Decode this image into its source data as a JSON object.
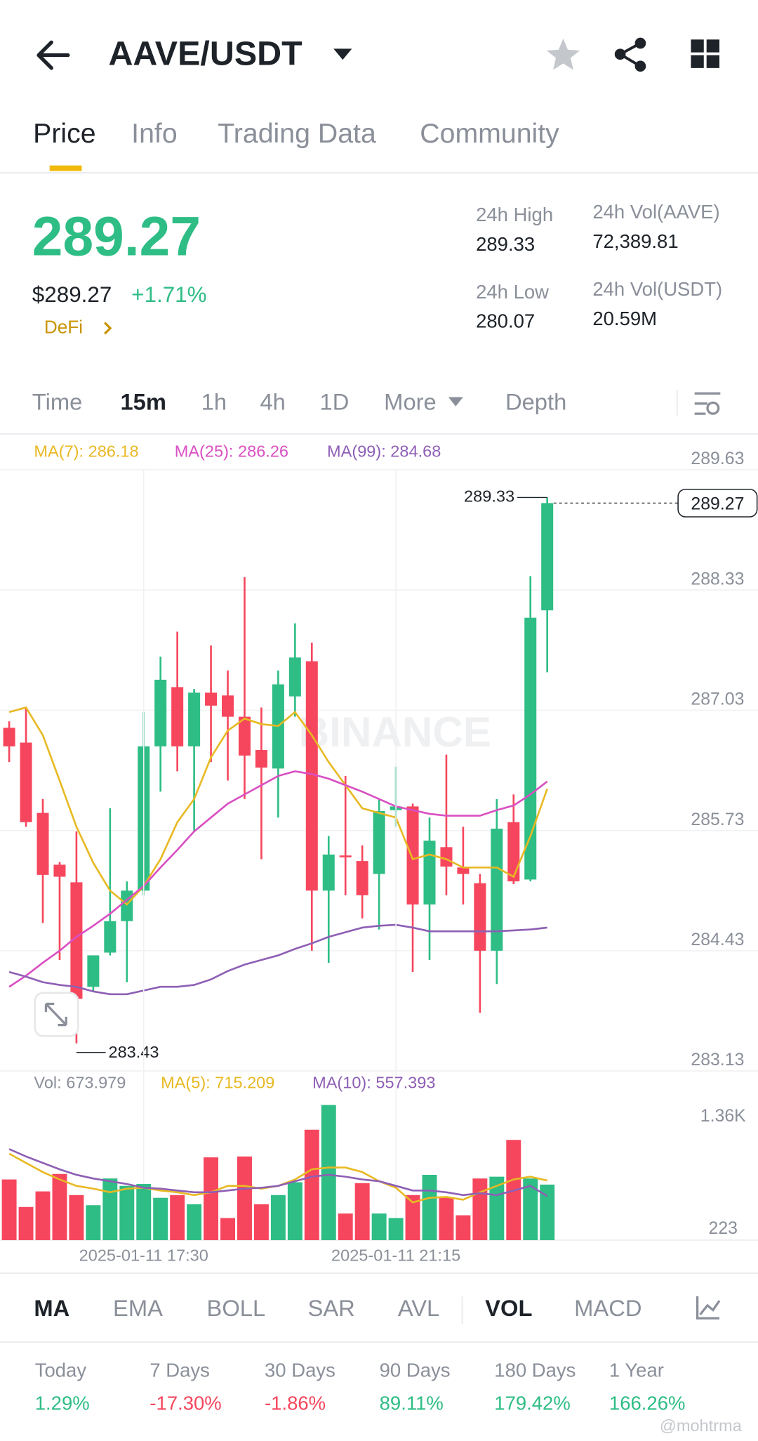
{
  "header": {
    "pair": "AAVE/USDT"
  },
  "tabs": [
    "Price",
    "Info",
    "Trading Data",
    "Community"
  ],
  "price": {
    "last": "289.27",
    "usd": "$289.27",
    "change": "+1.71%",
    "tag": "DeFi"
  },
  "stats": [
    {
      "label": "24h High",
      "value": "289.33"
    },
    {
      "label": "24h Low",
      "value": "280.07"
    },
    {
      "label": "24h Vol(AAVE)",
      "value": "72,389.81"
    },
    {
      "label": "24h Vol(USDT)",
      "value": "20.59M"
    }
  ],
  "intervals": [
    "Time",
    "15m",
    "1h",
    "4h",
    "1D",
    "More",
    "Depth"
  ],
  "indicators": [
    "MA",
    "EMA",
    "BOLL",
    "SAR",
    "AVL",
    "VOL",
    "MACD"
  ],
  "performance": [
    {
      "label": "Today",
      "value": "1.29%"
    },
    {
      "label": "7 Days",
      "value": "-17.30%"
    },
    {
      "label": "30 Days",
      "value": "-1.86%"
    },
    {
      "label": "90 Days",
      "value": "89.11%"
    },
    {
      "label": "180 Days",
      "value": "179.42%"
    },
    {
      "label": "1 Year",
      "value": "166.26%"
    }
  ],
  "watermark": "BINANCE",
  "credit": "@mohtrma",
  "chart_data": [
    {
      "type": "candlestick",
      "up_color": "#2ebd85",
      "down_color": "#f6465d",
      "open": [
        286.84,
        286.68,
        285.92,
        285.36,
        285.17,
        284.04,
        284.41,
        284.75,
        285.08,
        286.64,
        287.28,
        286.64,
        287.22,
        287.19,
        286.96,
        286.6,
        286.4,
        287.18,
        287.56,
        285.08,
        285.46,
        285.4,
        285.26,
        285.95,
        285.99,
        284.93,
        285.55,
        285.33,
        285.16,
        284.43,
        285.82,
        285.2,
        288.11
      ],
      "high": [
        286.91,
        287.06,
        286.07,
        285.39,
        285.72,
        284.38,
        285.97,
        285.18,
        287.01,
        287.61,
        287.88,
        287.26,
        287.73,
        287.46,
        288.47,
        287.06,
        287.46,
        287.97,
        287.76,
        285.67,
        286.32,
        285.57,
        286.07,
        286.42,
        286.02,
        285.87,
        286.55,
        285.77,
        285.26,
        286.07,
        286.12,
        288.48,
        289.33
      ],
      "low": [
        286.47,
        285.77,
        284.73,
        284.33,
        283.43,
        283.99,
        284.38,
        284.09,
        285.03,
        286.15,
        286.37,
        285.72,
        286.47,
        286.27,
        286.07,
        285.42,
        285.87,
        286.96,
        284.43,
        284.3,
        285.03,
        284.78,
        284.66,
        285.77,
        284.2,
        284.33,
        285.03,
        284.93,
        283.76,
        284.07,
        285.15,
        285.18,
        287.44
      ],
      "close": [
        286.64,
        285.82,
        285.25,
        285.23,
        283.91,
        284.38,
        284.75,
        285.08,
        286.64,
        287.36,
        286.64,
        287.22,
        287.08,
        286.96,
        286.54,
        286.41,
        287.31,
        287.6,
        285.08,
        285.47,
        285.44,
        285.03,
        285.94,
        285.99,
        284.93,
        285.62,
        285.34,
        285.26,
        284.43,
        285.75,
        285.18,
        288.03,
        289.27
      ],
      "ylim": [
        283.13,
        289.63
      ],
      "yticks": [
        283.13,
        284.43,
        285.73,
        287.03,
        288.33,
        289.63
      ],
      "grid": true,
      "series": [
        {
          "name": "MA(7)",
          "color": "#e8b923",
          "values": [
            287.01,
            287.06,
            286.76,
            286.27,
            285.77,
            285.38,
            285.08,
            284.93,
            285.13,
            285.42,
            285.82,
            286.07,
            286.52,
            286.81,
            286.94,
            286.88,
            286.86,
            287.01,
            286.76,
            286.47,
            286.22,
            285.97,
            285.92,
            285.87,
            285.42,
            285.47,
            285.42,
            285.33,
            285.33,
            285.33,
            285.23,
            285.67,
            286.18
          ]
        },
        {
          "name": "MA(25)",
          "color": "#d94fc2",
          "values": [
            284.04,
            284.16,
            284.3,
            284.43,
            284.58,
            284.7,
            284.83,
            284.98,
            285.13,
            285.33,
            285.52,
            285.72,
            285.87,
            286.02,
            286.12,
            286.22,
            286.32,
            286.37,
            286.34,
            286.29,
            286.22,
            286.15,
            286.07,
            285.99,
            285.95,
            285.91,
            285.89,
            285.89,
            285.89,
            285.95,
            286.0,
            286.12,
            286.26
          ]
        },
        {
          "name": "MA(99)",
          "color": "#8e5fb5",
          "values": [
            284.2,
            284.15,
            284.09,
            284.06,
            284.04,
            283.99,
            283.96,
            283.96,
            284.0,
            284.04,
            284.04,
            284.06,
            284.12,
            284.21,
            284.28,
            284.33,
            284.38,
            284.45,
            284.51,
            284.58,
            284.63,
            284.68,
            284.7,
            284.71,
            284.68,
            284.64,
            284.64,
            284.64,
            284.64,
            284.64,
            284.65,
            284.66,
            284.68
          ]
        }
      ],
      "legend": [
        {
          "label": "MA(7): 286.18",
          "color": "#e8b923"
        },
        {
          "label": "MA(25): 286.26",
          "color": "#d94fc2"
        },
        {
          "label": "MA(99): 284.68",
          "color": "#8e5fb5"
        }
      ],
      "annotations": {
        "high": 289.33,
        "low": 283.43,
        "last": 289.27
      }
    },
    {
      "type": "bar",
      "categories": [
        null,
        null,
        null,
        null,
        null,
        null,
        null,
        null,
        "2025-01-11 17:30",
        null,
        null,
        null,
        null,
        null,
        null,
        null,
        null,
        null,
        null,
        null,
        null,
        null,
        null,
        "2025-01-11 21:15",
        null,
        null,
        null,
        null,
        null,
        null,
        null,
        null,
        null
      ],
      "values": [
        726,
        447,
        605,
        782,
        568,
        465,
        736,
        661,
        680,
        540,
        568,
        475,
        950,
        335,
        959,
        475,
        568,
        698,
        1230,
        1481,
        381,
        689,
        381,
        335,
        568,
        773,
        540,
        363,
        736,
        754,
        1127,
        736,
        673.979
      ],
      "ylim": [
        111,
        1779
      ],
      "yticks": [
        223,
        {
          "value": 1360,
          "label": "1.36K"
        }
      ],
      "grid": false,
      "series": [
        {
          "name": "MA(5)",
          "color": "#e8b923",
          "values": [
            987,
            894,
            801,
            726,
            661,
            633,
            596,
            633,
            642,
            614,
            596,
            568,
            596,
            661,
            661,
            633,
            661,
            726,
            829,
            847,
            847,
            801,
            708,
            642,
            493,
            540,
            549,
            521,
            596,
            661,
            726,
            754,
            715.209
          ]
        },
        {
          "name": "MA(10)",
          "color": "#8e5fb5",
          "values": [
            1034,
            959,
            894,
            829,
            773,
            736,
            708,
            680,
            642,
            633,
            614,
            596,
            596,
            614,
            633,
            642,
            661,
            708,
            754,
            773,
            754,
            726,
            708,
            661,
            614,
            614,
            596,
            568,
            586,
            568,
            614,
            661,
            557.393
          ]
        }
      ],
      "legend": [
        {
          "label": "Vol: 673.979",
          "color": "#8a8f99"
        },
        {
          "label": "MA(5): 715.209",
          "color": "#e8b923"
        },
        {
          "label": "MA(10): 557.393",
          "color": "#8e5fb5"
        }
      ]
    }
  ]
}
